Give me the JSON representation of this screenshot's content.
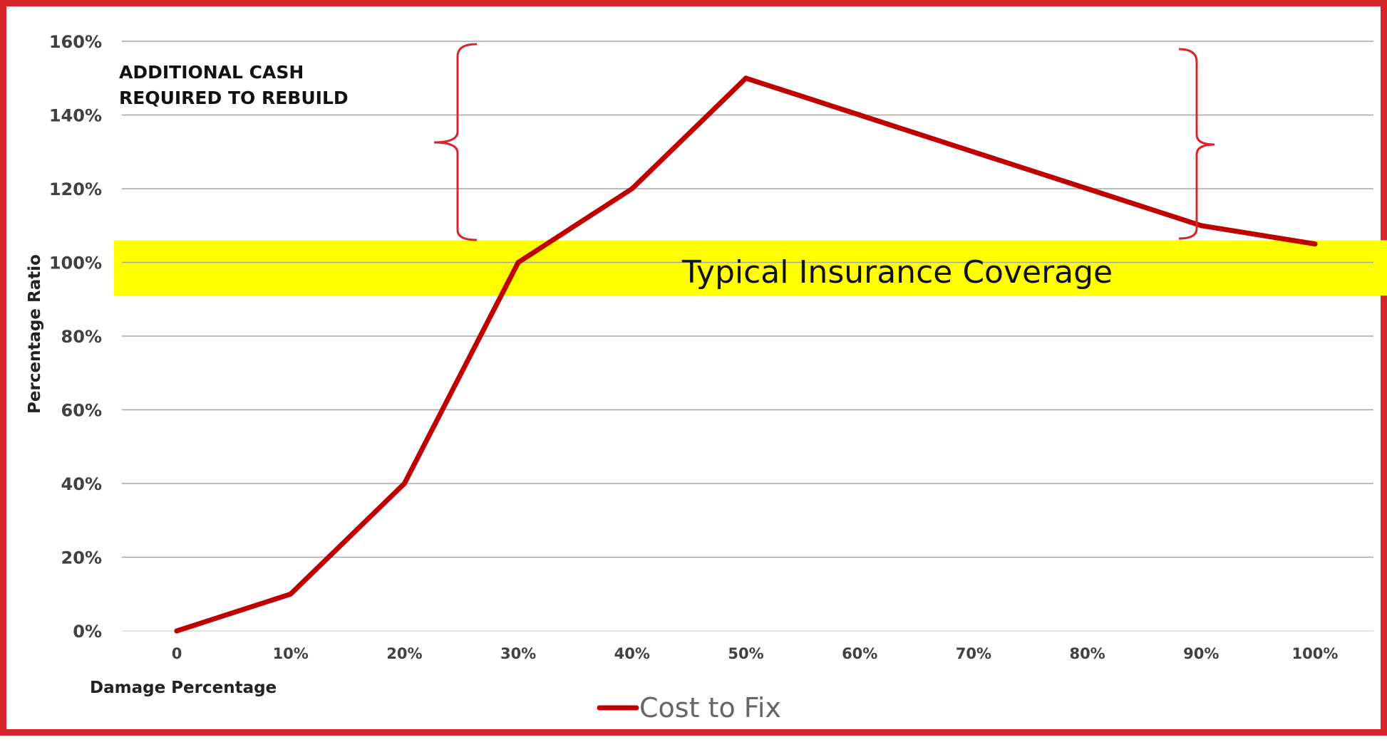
{
  "chart_data": {
    "type": "line",
    "title": "",
    "xlabel": "Damage Percentage",
    "ylabel": "Percentage Ratio",
    "categories": [
      "0",
      "10%",
      "20%",
      "30%",
      "40%",
      "50%",
      "60%",
      "70%",
      "80%",
      "90%",
      "100%"
    ],
    "series": [
      {
        "name": "Cost to Fix",
        "color": "#c00000",
        "values": [
          0,
          10,
          40,
          100,
          120,
          150,
          140,
          130,
          120,
          110,
          105
        ]
      }
    ],
    "y_ticks": [
      "0%",
      "20%",
      "40%",
      "60%",
      "80%",
      "100%",
      "120%",
      "140%",
      "160%"
    ],
    "ylim": [
      0,
      160
    ],
    "grid": true,
    "legend_position": "bottom",
    "annotations": {
      "cash_label_line1": "ADDITIONAL CASH",
      "cash_label_line2": "REQUIRED TO REBUILD",
      "coverage_band_label": "Typical Insurance Coverage",
      "coverage_band_range": [
        91,
        106
      ],
      "coverage_band_color": "#ffff00",
      "bracket_color": "#d6252b"
    }
  }
}
